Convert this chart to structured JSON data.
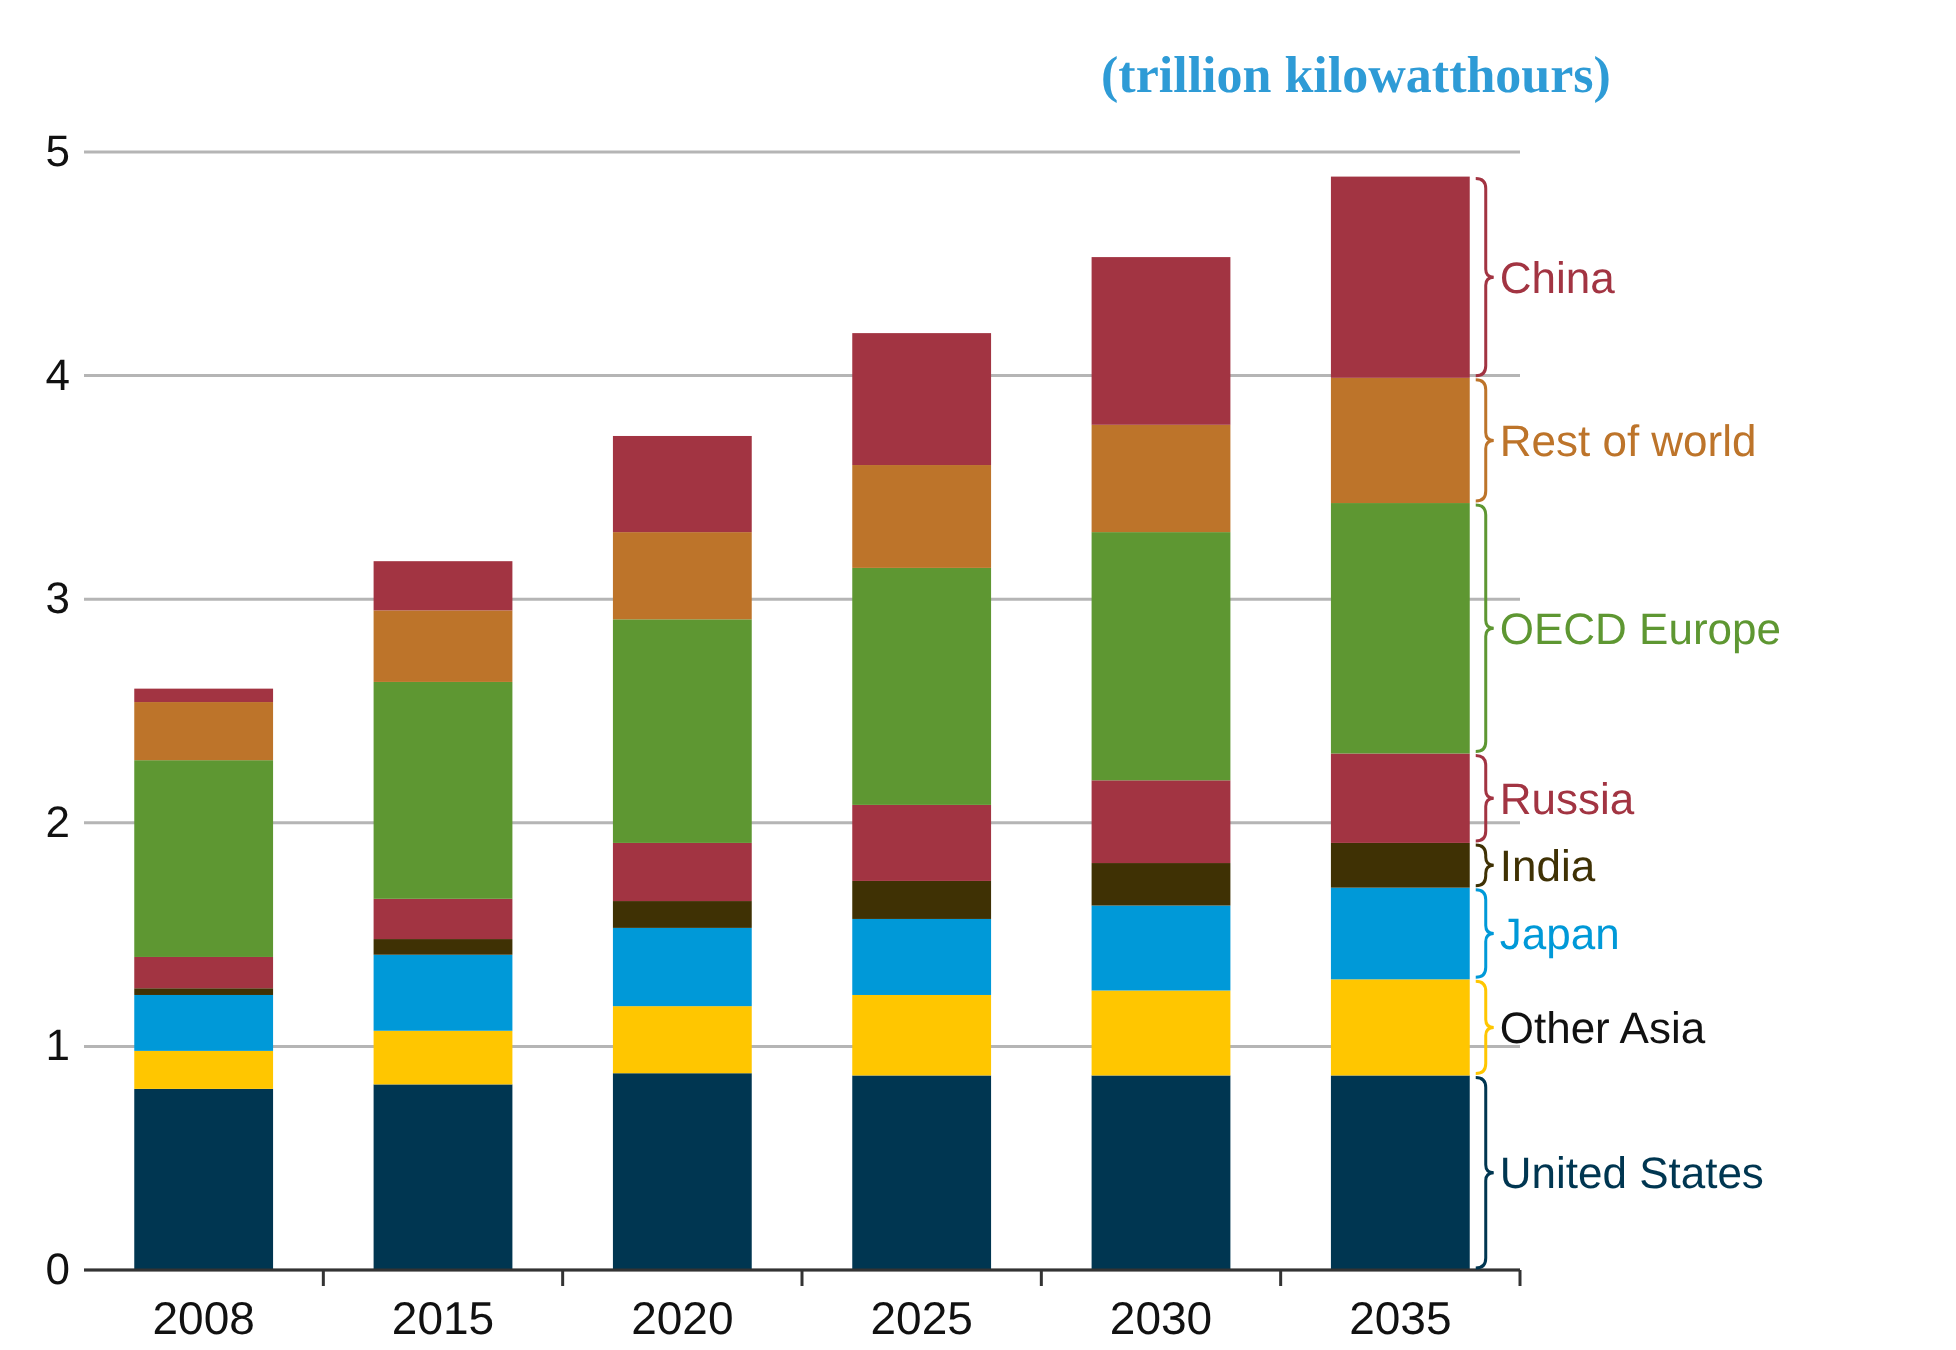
{
  "chart_data": {
    "type": "bar",
    "stacked": true,
    "title": "(trillion kilowatthours)",
    "categories": [
      "2008",
      "2015",
      "2020",
      "2025",
      "2030",
      "2035"
    ],
    "series": [
      {
        "name": "United States",
        "color": "#003651",
        "values": [
          0.81,
          0.83,
          0.88,
          0.87,
          0.87,
          0.87
        ]
      },
      {
        "name": "Other Asia",
        "color": "#ffc600",
        "values": [
          0.17,
          0.24,
          0.3,
          0.36,
          0.38,
          0.43
        ]
      },
      {
        "name": "Japan",
        "color": "#0099d8",
        "values": [
          0.25,
          0.34,
          0.35,
          0.34,
          0.38,
          0.41
        ]
      },
      {
        "name": "India",
        "color": "#3f3104",
        "values": [
          0.03,
          0.07,
          0.12,
          0.17,
          0.19,
          0.2
        ]
      },
      {
        "name": "Russia",
        "color": "#a23442",
        "values": [
          0.14,
          0.18,
          0.26,
          0.34,
          0.37,
          0.4
        ]
      },
      {
        "name": "OECD Europe",
        "color": "#5e9732",
        "values": [
          0.88,
          0.97,
          1.0,
          1.06,
          1.11,
          1.12
        ]
      },
      {
        "name": "Rest of world",
        "color": "#bd742a",
        "values": [
          0.26,
          0.32,
          0.39,
          0.46,
          0.48,
          0.56
        ]
      },
      {
        "name": "China",
        "color": "#a23442",
        "values": [
          0.06,
          0.22,
          0.43,
          0.59,
          0.75,
          0.9
        ]
      }
    ],
    "ylim": [
      0,
      5
    ],
    "yticks": [
      0,
      1,
      2,
      3,
      4,
      5
    ],
    "grid": "y",
    "legend": "right"
  }
}
